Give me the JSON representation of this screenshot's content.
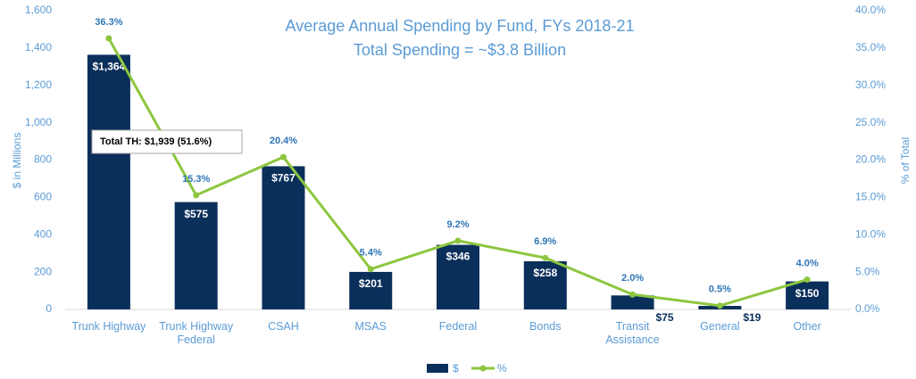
{
  "chart_data": {
    "type": "bar_line",
    "title": "Average Annual Spending by Fund, FYs 2018-21",
    "subtitle": "Total Spending = ~$3.8 Billion",
    "y_label": "$ in Millions",
    "y2_label": "% of Total",
    "annotation": "Total TH: $1,939 (51.6%)",
    "categories": [
      "Trunk Highway",
      "Trunk Highway Federal",
      "CSAH",
      "MSAS",
      "Federal",
      "Bonds",
      "Transit Assistance",
      "General",
      "Other"
    ],
    "series": [
      {
        "name": "$",
        "type": "bar",
        "color": "#0b2f5b",
        "values": [
          1364,
          575,
          767,
          201,
          346,
          258,
          75,
          19,
          150
        ],
        "value_labels": [
          "$1,364",
          "$575",
          "$767",
          "$201",
          "$346",
          "$258",
          "$75",
          "$19",
          "$150"
        ]
      },
      {
        "name": "%",
        "type": "line",
        "axis": "y2",
        "color": "#8dc63f",
        "values": [
          36.3,
          15.3,
          20.4,
          5.4,
          9.2,
          6.9,
          2.0,
          0.5,
          4.0
        ],
        "value_labels": [
          "36.3%",
          "15.3%",
          "20.4%",
          "5.4%",
          "9.2%",
          "6.9%",
          "2.0%",
          "0.5%",
          "4.0%"
        ]
      }
    ],
    "ylim": [
      0,
      1600
    ],
    "yticks": [
      0,
      200,
      400,
      600,
      800,
      {
        "value": 1000,
        "label": "1,000"
      },
      {
        "value": 1200,
        "label": "1,200"
      },
      {
        "value": 1400,
        "label": "1,400"
      },
      {
        "value": 1600,
        "label": "1,600"
      }
    ],
    "y2lim": [
      0,
      40
    ],
    "y2ticks": [
      {
        "value": 0,
        "label": "0.0%"
      },
      {
        "value": 5,
        "label": "5.0%"
      },
      {
        "value": 10,
        "label": "10.0%"
      },
      {
        "value": 15,
        "label": "15.0%"
      },
      {
        "value": 20,
        "label": "20.0%"
      },
      {
        "value": 25,
        "label": "25.0%"
      },
      {
        "value": 30,
        "label": "30.0%"
      },
      {
        "value": 35,
        "label": "35.0%"
      },
      {
        "value": 40,
        "label": "40.0%"
      }
    ],
    "legend": "bottom"
  }
}
